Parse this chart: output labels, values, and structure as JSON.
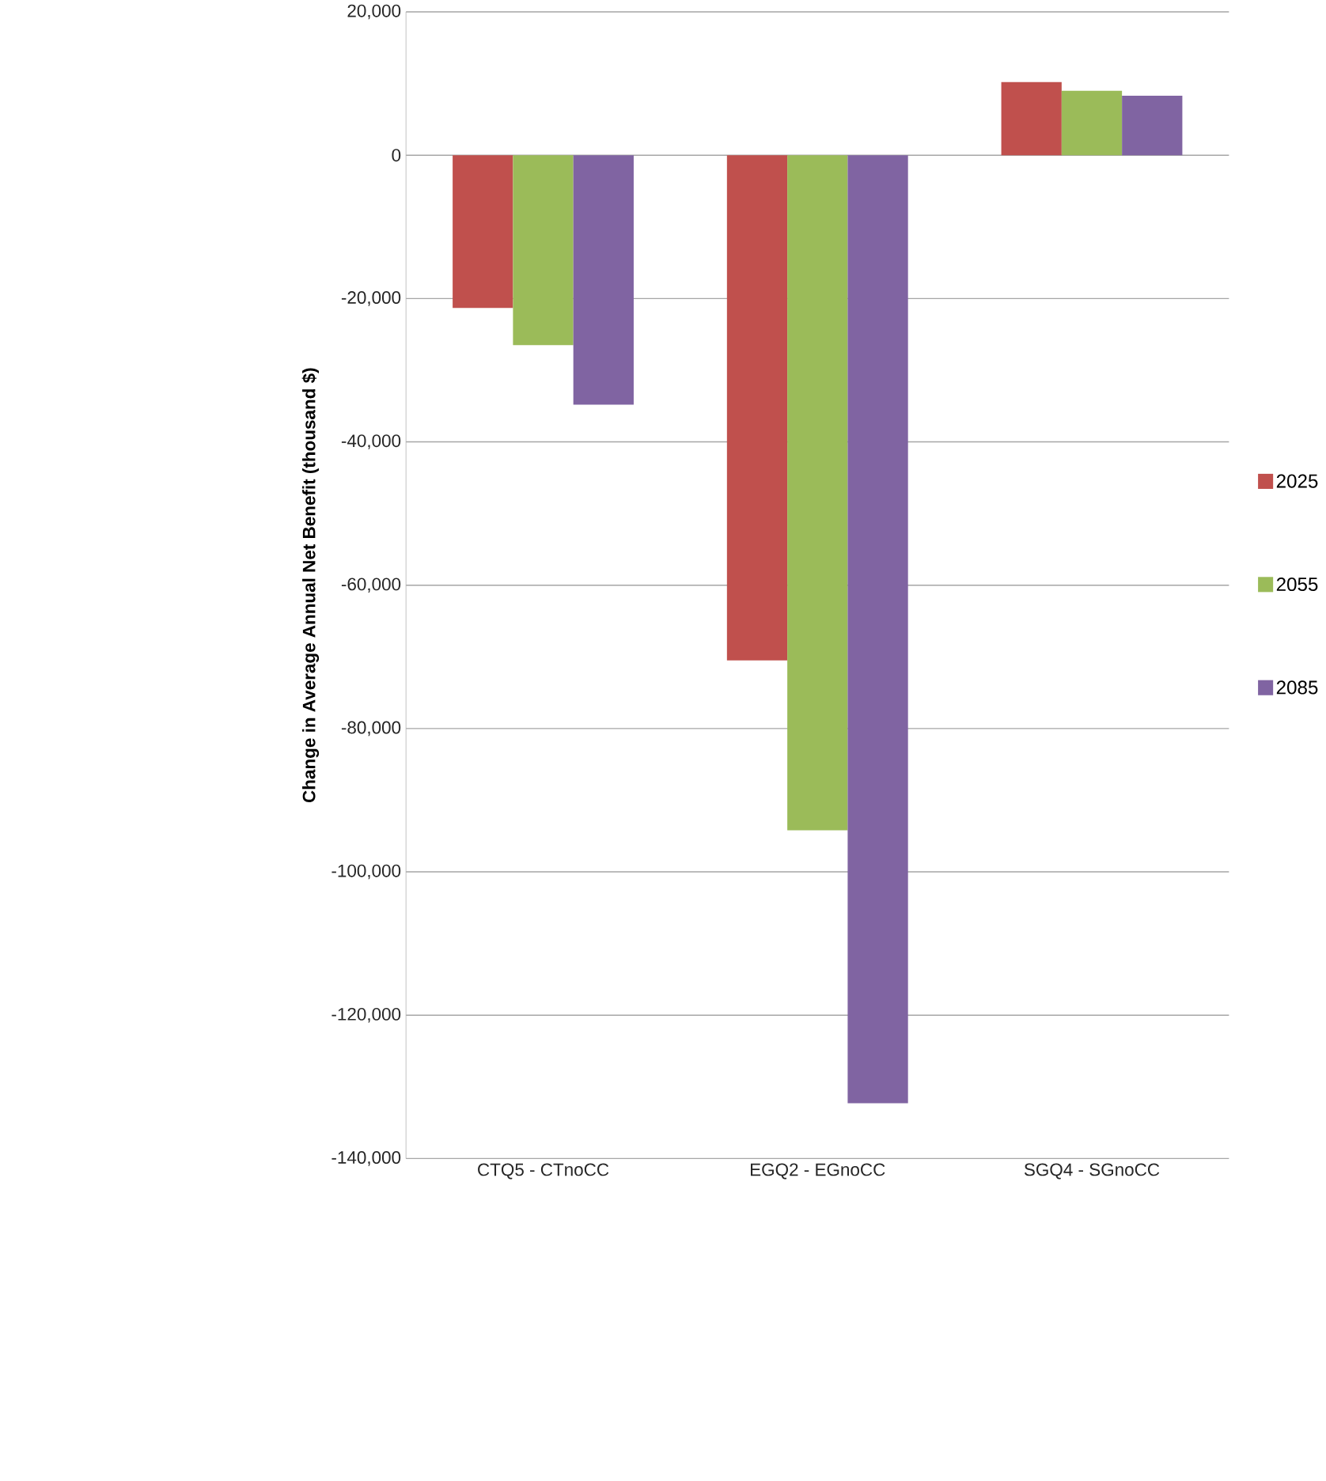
{
  "chart_data": {
    "type": "bar",
    "ylabel": "Change in Average Annual Net Benefit (thousand $)",
    "categories": [
      "CTQ5 - CTnoCC",
      "EGQ2 - EGnoCC",
      "SGQ4 - SGnoCC"
    ],
    "series": [
      {
        "name": "2025",
        "color": "#c0504d",
        "values": [
          -21300,
          -70500,
          10200
        ]
      },
      {
        "name": "2055",
        "color": "#9bbb59",
        "values": [
          -26500,
          -94200,
          9000
        ]
      },
      {
        "name": "2085",
        "color": "#8064a2",
        "values": [
          -34800,
          -132300,
          8300
        ]
      }
    ],
    "ylim": [
      -140000,
      20000
    ],
    "yticks": [
      {
        "value": -140000,
        "label": "-140,000"
      },
      {
        "value": -120000,
        "label": "-120,000"
      },
      {
        "value": -100000,
        "label": "-100,000"
      },
      {
        "value": -80000,
        "label": "-80,000"
      },
      {
        "value": -60000,
        "label": "-60,000"
      },
      {
        "value": -40000,
        "label": "-40,000"
      },
      {
        "value": -20000,
        "label": "-20,000"
      },
      {
        "value": 0,
        "label": "0"
      },
      {
        "value": 20000,
        "label": "20,000"
      }
    ],
    "grid": "y",
    "legend": "right"
  }
}
